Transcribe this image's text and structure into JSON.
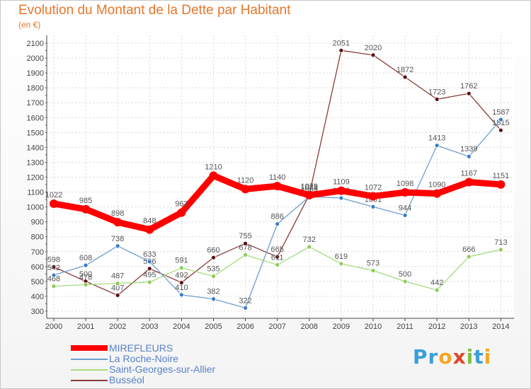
{
  "header": {
    "title": "Evolution du Montant de la Dette par Habitant",
    "subtitle": "(en €)"
  },
  "logo": {
    "letters": [
      "P",
      "r",
      "o",
      "x",
      "i",
      "t",
      "i"
    ],
    "colors": [
      "#3aa0d8",
      "#3aa0d8",
      "#f5a623",
      "#e0452b",
      "#7cc143",
      "#3aa0d8",
      "#f5a623"
    ]
  },
  "legend": [
    {
      "label": "MIREFLEURS",
      "color": "#ff0000"
    },
    {
      "label": "La Roche-Noire",
      "color": "#6d9fd3"
    },
    {
      "label": "Saint-Georges-sur-Allier",
      "color": "#a4dc7c"
    },
    {
      "label": "Busséol",
      "color": "#8b3a3a"
    }
  ],
  "chart_data": {
    "type": "line",
    "title": "Evolution du Montant de la Dette par Habitant",
    "subtitle": "(en €)",
    "categories": [
      "2000",
      "2001",
      "2002",
      "2003",
      "2004",
      "2005",
      "2006",
      "2007",
      "2008",
      "2009",
      "2010",
      "2011",
      "2012",
      "2013",
      "2014"
    ],
    "ylim": [
      300,
      2100
    ],
    "yticks": [
      300,
      400,
      500,
      600,
      700,
      800,
      900,
      1000,
      1100,
      1200,
      1300,
      1400,
      1500,
      1600,
      1700,
      1800,
      1900,
      2000,
      2100
    ],
    "grid": true,
    "legend_position": "bottom",
    "series": [
      {
        "name": "Busséol",
        "color": "#8b3a3a",
        "marker": "#5a1010",
        "values": [
          598,
          500,
          407,
          586,
          492,
          660,
          755,
          665,
          1081,
          2051,
          2020,
          1872,
          1723,
          1762,
          1515
        ]
      },
      {
        "name": "Saint-Georges-sur-Allier",
        "color": "#a4dc7c",
        "marker": "#8acb5b",
        "values": [
          468,
          478,
          487,
          495,
          591,
          535,
          678,
          611,
          732,
          619,
          573,
          500,
          442,
          666,
          713
        ]
      },
      {
        "name": "La Roche-Noire",
        "color": "#6d9fd3",
        "marker": "#3a7cc4",
        "values": [
          542,
          608,
          738,
          633,
          410,
          382,
          322,
          886,
          1069,
          1060,
          1001,
          944,
          1413,
          1339,
          1587
        ]
      },
      {
        "name": "MIREFLEURS",
        "color": "#ff0000",
        "marker": "#ff0000",
        "values": [
          1022,
          985,
          898,
          848,
          962,
          1210,
          1120,
          1140,
          1079,
          1109,
          1072,
          1098,
          1090,
          1167,
          1151
        ]
      }
    ]
  }
}
